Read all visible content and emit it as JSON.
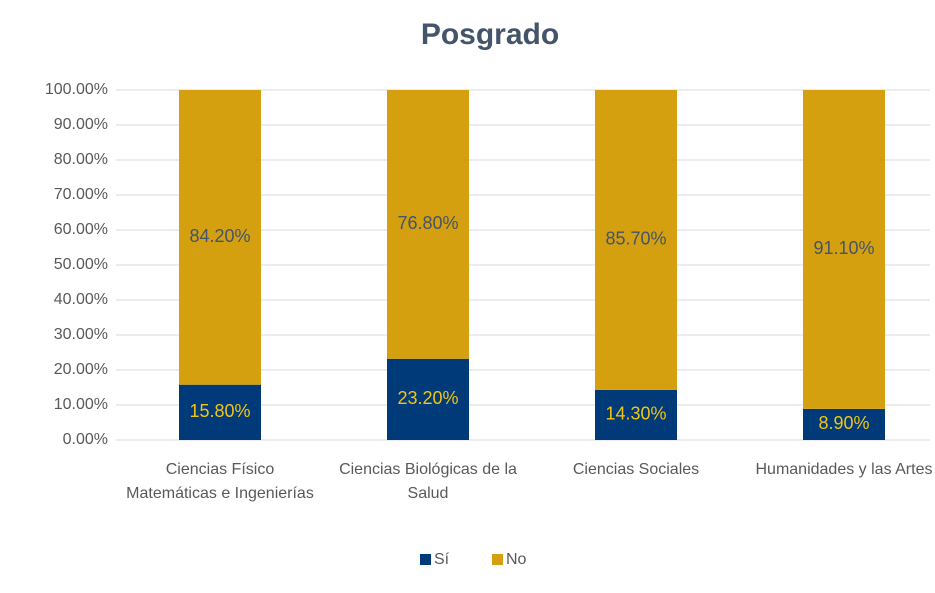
{
  "chart_data": {
    "type": "stacked_bar",
    "title": "Posgrado",
    "categories": [
      "Ciencias Físico Matemáticas e Ingenierías",
      "Ciencias Biológicas de la Salud",
      "Ciencias Sociales",
      "Humanidades y las Artes"
    ],
    "series": [
      {
        "name": "Sí",
        "color": "#003a78",
        "label_color": "#f2c511",
        "values": [
          15.8,
          23.2,
          14.3,
          8.9
        ],
        "value_labels": [
          "15.80%",
          "23.20%",
          "14.30%",
          "8.90%"
        ]
      },
      {
        "name": "No",
        "color": "#d4a00f",
        "label_color": "#44546a",
        "values": [
          84.2,
          76.8,
          85.7,
          91.1
        ],
        "value_labels": [
          "84.20%",
          "76.80%",
          "85.70%",
          "91.10%"
        ]
      }
    ],
    "ylim": [
      0,
      100
    ],
    "yticks": [
      {
        "value": 0,
        "label": "0.00%"
      },
      {
        "value": 10,
        "label": "10.00%"
      },
      {
        "value": 20,
        "label": "20.00%"
      },
      {
        "value": 30,
        "label": "30.00%"
      },
      {
        "value": 40,
        "label": "40.00%"
      },
      {
        "value": 50,
        "label": "50.00%"
      },
      {
        "value": 60,
        "label": "60.00%"
      },
      {
        "value": 70,
        "label": "70.00%"
      },
      {
        "value": 80,
        "label": "80.00%"
      },
      {
        "value": 90,
        "label": "90.00%"
      },
      {
        "value": 100,
        "label": "100.00%"
      }
    ],
    "grid": true,
    "legend": "bottom"
  }
}
